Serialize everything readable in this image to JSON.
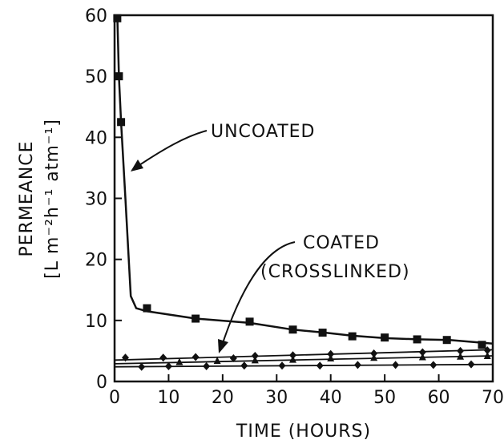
{
  "chart_data": {
    "type": "line",
    "title": "",
    "xlabel": "TIME (HOURS)",
    "ylabel_line1": "PERMEANCE",
    "ylabel_line2": "[L m⁻²h⁻¹ atm⁻¹]",
    "xlim": [
      0,
      70
    ],
    "ylim": [
      0,
      60
    ],
    "x_ticks": [
      0,
      10,
      20,
      30,
      40,
      50,
      60,
      70
    ],
    "y_ticks": [
      0,
      10,
      20,
      30,
      40,
      50,
      60
    ],
    "grid": false,
    "annotations": [
      {
        "text": "UNCOATED"
      },
      {
        "text": "COATED"
      },
      {
        "text": "(CROSSLINKED)"
      }
    ],
    "series": [
      {
        "marker": "square",
        "curve": [
          [
            0.5,
            60
          ],
          [
            0.8,
            50
          ],
          [
            1.2,
            42.5
          ],
          [
            2,
            30
          ],
          [
            3,
            14
          ],
          [
            4,
            12
          ],
          [
            6,
            11.5
          ],
          [
            15,
            10.3
          ],
          [
            25,
            9.6
          ],
          [
            33,
            8.5
          ],
          [
            39,
            8
          ],
          [
            44,
            7.5
          ],
          [
            50,
            7.1
          ],
          [
            56,
            6.9
          ],
          [
            62,
            6.8
          ],
          [
            70,
            6.2
          ]
        ],
        "points": [
          [
            0.5,
            59.5
          ],
          [
            0.8,
            50
          ],
          [
            1.2,
            42.5
          ],
          [
            6,
            12
          ],
          [
            15,
            10.3
          ],
          [
            25,
            9.8
          ],
          [
            33,
            8.5
          ],
          [
            38.5,
            8
          ],
          [
            44,
            7.4
          ],
          [
            50,
            7.2
          ],
          [
            56,
            6.9
          ],
          [
            61.5,
            6.8
          ],
          [
            68,
            6
          ]
        ]
      },
      {
        "marker": "diamond",
        "curve": [
          [
            0,
            3.5
          ],
          [
            70,
            5.2
          ]
        ],
        "points": [
          [
            2,
            3.9
          ],
          [
            9,
            3.9
          ],
          [
            15,
            4
          ],
          [
            22,
            3.8
          ],
          [
            26,
            4.2
          ],
          [
            33,
            4.3
          ],
          [
            40,
            4.5
          ],
          [
            48,
            4.6
          ],
          [
            57,
            4.8
          ],
          [
            64,
            5
          ],
          [
            69,
            5.1
          ]
        ]
      },
      {
        "marker": "triangle",
        "curve": [
          [
            0,
            2.9
          ],
          [
            70,
            4.2
          ]
        ],
        "points": [
          [
            12,
            3.2
          ],
          [
            19,
            3.4
          ],
          [
            26,
            3.5
          ],
          [
            33,
            3.6
          ],
          [
            40,
            3.8
          ],
          [
            48,
            3.9
          ],
          [
            57,
            4
          ],
          [
            64,
            4.1
          ],
          [
            69,
            4.2
          ]
        ]
      },
      {
        "marker": "diamond",
        "curve": [
          [
            0,
            2.4
          ],
          [
            70,
            2.8
          ]
        ],
        "points": [
          [
            5,
            2.4
          ],
          [
            10,
            2.5
          ],
          [
            17,
            2.5
          ],
          [
            24,
            2.6
          ],
          [
            31,
            2.6
          ],
          [
            38,
            2.6
          ],
          [
            45,
            2.7
          ],
          [
            52,
            2.7
          ],
          [
            59,
            2.7
          ],
          [
            66,
            2.8
          ]
        ]
      }
    ]
  }
}
